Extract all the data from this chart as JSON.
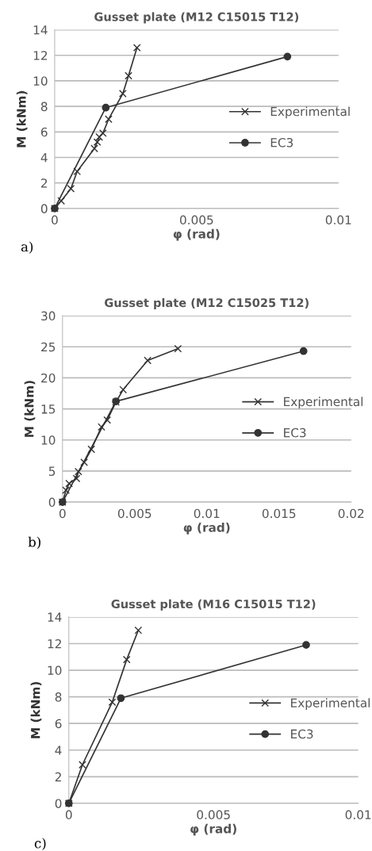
{
  "chart_data": [
    {
      "type": "line",
      "title": "Gusset plate (M12 C15015 T12)",
      "xlabel": "φ (rad)",
      "ylabel": "M (kNm)",
      "annotations": [
        "a)"
      ],
      "xlim": [
        0,
        0.01
      ],
      "xticks": [
        0,
        0.005,
        0.01
      ],
      "ylim": [
        0,
        14
      ],
      "yticks": [
        0,
        2,
        4,
        6,
        8,
        10,
        12,
        14
      ],
      "grid": "y",
      "legend": "right",
      "series": [
        {
          "name": "Experimental",
          "color": "#333333",
          "marker": "cross",
          "x": [
            0,
            0.00023,
            0.00057,
            0.00079,
            0.0014,
            0.0015,
            0.00157,
            0.0017,
            0.0019,
            0.0024,
            0.0026,
            0.0029
          ],
          "values": [
            0,
            0.6,
            1.55,
            2.9,
            4.7,
            5.2,
            5.6,
            5.9,
            7.0,
            9.0,
            10.4,
            12.6
          ]
        },
        {
          "name": "EC3",
          "color": "#333333",
          "marker": "circle",
          "x": [
            0,
            0.0018,
            0.0082
          ],
          "values": [
            0,
            7.9,
            11.9
          ]
        }
      ]
    },
    {
      "type": "line",
      "title": "Gusset plate (M12 C15025 T12)",
      "xlabel": "φ (rad)",
      "ylabel": "M (kNm)",
      "annotations": [
        "b)"
      ],
      "xlim": [
        0,
        0.02
      ],
      "xticks": [
        0,
        0.005,
        0.01,
        0.015,
        0.02
      ],
      "ylim": [
        0,
        30
      ],
      "yticks": [
        0,
        5,
        10,
        15,
        20,
        25,
        30
      ],
      "grid": "y",
      "legend": "right",
      "series": [
        {
          "name": "Experimental",
          "color": "#333333",
          "marker": "cross",
          "x": [
            0,
            0.00024,
            0.00046,
            0.00097,
            0.0011,
            0.0015,
            0.002,
            0.0027,
            0.0031,
            0.0037,
            0.0042,
            0.0059,
            0.008
          ],
          "values": [
            0,
            1.9,
            3.0,
            3.8,
            4.9,
            6.4,
            8.5,
            12.1,
            13.2,
            16.1,
            18.1,
            22.8,
            24.7
          ]
        },
        {
          "name": "EC3",
          "color": "#333333",
          "marker": "circle",
          "x": [
            0,
            0.0037,
            0.0167
          ],
          "values": [
            0,
            16.2,
            24.3
          ]
        }
      ]
    },
    {
      "type": "line",
      "title": "Gusset plate (M16 C15015 T12)",
      "xlabel": "φ (rad)",
      "ylabel": "M (kNm)",
      "annotations": [
        "c)"
      ],
      "xlim": [
        0,
        0.01
      ],
      "xticks": [
        0,
        0.005,
        0.01
      ],
      "ylim": [
        0,
        14
      ],
      "yticks": [
        0,
        2,
        4,
        6,
        8,
        10,
        12,
        14
      ],
      "grid": "y",
      "legend": "right",
      "series": [
        {
          "name": "Experimental",
          "color": "#333333",
          "marker": "cross",
          "x": [
            0,
            0.00047,
            0.0015,
            0.002,
            0.0024
          ],
          "values": [
            0,
            2.9,
            7.6,
            10.8,
            13.0
          ]
        },
        {
          "name": "EC3",
          "color": "#333333",
          "marker": "circle",
          "x": [
            0,
            0.0018,
            0.0082
          ],
          "values": [
            0,
            7.9,
            11.9
          ]
        }
      ]
    }
  ]
}
